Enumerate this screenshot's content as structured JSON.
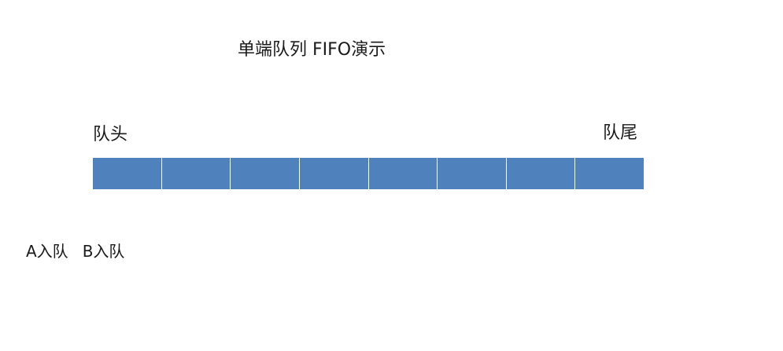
{
  "title": "单端队列 FIFO演示",
  "queue": {
    "head_label": "队头",
    "tail_label": "队尾",
    "slot_count": 8,
    "slot_color": "#4f81bd"
  },
  "operations": [
    {
      "label": "A入队"
    },
    {
      "label": "B入队"
    }
  ]
}
